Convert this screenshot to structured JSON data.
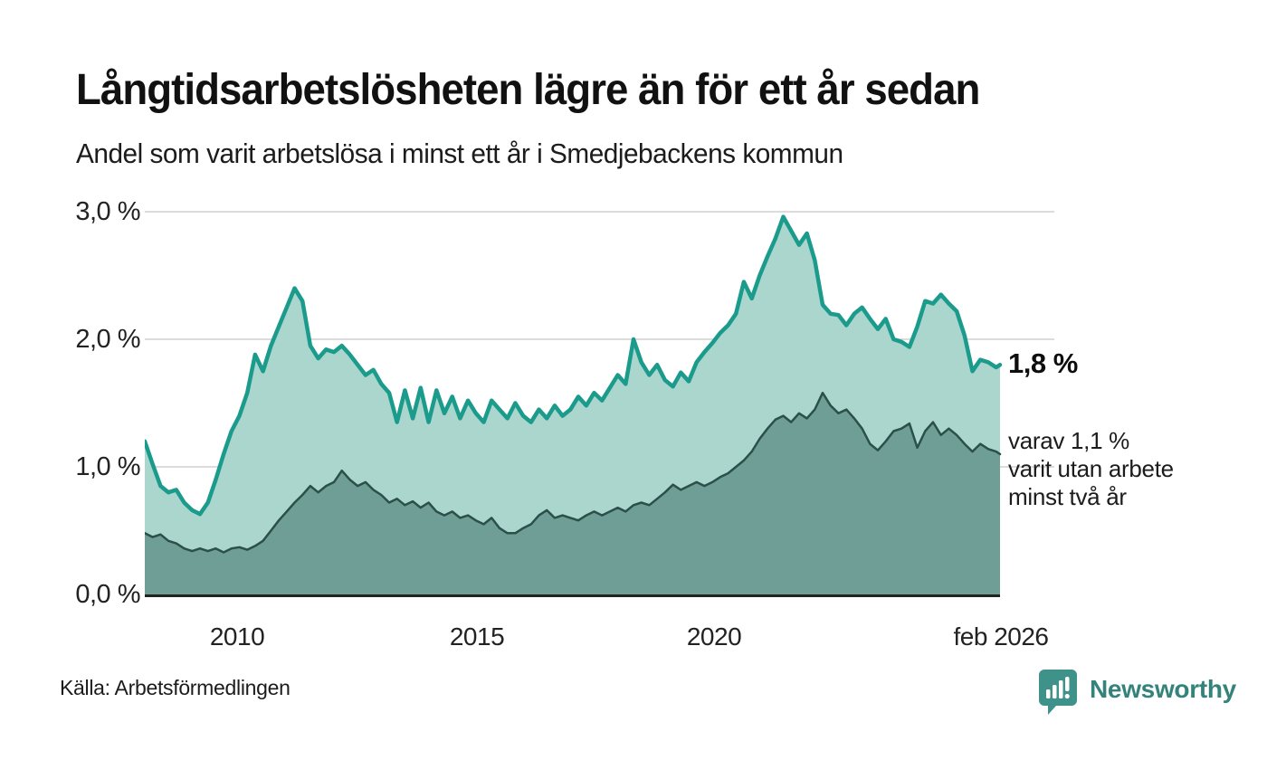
{
  "header": {
    "title": "Långtidsarbetslösheten lägre än för ett år sedan",
    "subtitle": "Andel som varit arbetslösa i minst ett år i Smedjebackens kommun"
  },
  "chart_data": {
    "type": "area",
    "title": "Långtidsarbetslösheten lägre än för ett år sedan",
    "subtitle": "Andel som varit arbetslösa i minst ett år i Smedjebackens kommun",
    "unit": "%",
    "grid": true,
    "x_axis": {
      "start": 2008.0,
      "end": 2026.083,
      "points_per_year": 6,
      "tick_labels": [
        {
          "text": "2010",
          "x": 2010.0
        },
        {
          "text": "2015",
          "x": 2015.0
        },
        {
          "text": "2020",
          "x": 2020.0
        },
        {
          "text": "feb 2026",
          "x": 2026.083
        }
      ]
    },
    "y_axis": {
      "min": 0.0,
      "max": 3.0,
      "tick_labels": [
        "3,0 %",
        "2,0 %",
        "1,0 %",
        "0,0 %"
      ],
      "tick_values": [
        3.0,
        2.0,
        1.0,
        0.0
      ]
    },
    "series": [
      {
        "name": "Arbetslösa minst ett år",
        "line_color": "#1a9b8b",
        "fill_color": "#aad6ce",
        "values": [
          1.2,
          1.02,
          0.85,
          0.8,
          0.82,
          0.72,
          0.66,
          0.63,
          0.72,
          0.9,
          1.1,
          1.28,
          1.4,
          1.58,
          1.88,
          1.75,
          1.95,
          2.1,
          2.25,
          2.4,
          2.3,
          1.95,
          1.85,
          1.92,
          1.9,
          1.95,
          1.88,
          1.8,
          1.72,
          1.76,
          1.65,
          1.58,
          1.35,
          1.6,
          1.38,
          1.62,
          1.35,
          1.6,
          1.42,
          1.55,
          1.38,
          1.52,
          1.42,
          1.35,
          1.52,
          1.45,
          1.38,
          1.5,
          1.4,
          1.35,
          1.45,
          1.38,
          1.48,
          1.4,
          1.45,
          1.55,
          1.48,
          1.58,
          1.52,
          1.62,
          1.72,
          1.65,
          2.0,
          1.82,
          1.72,
          1.8,
          1.68,
          1.63,
          1.74,
          1.67,
          1.82,
          1.9,
          1.97,
          2.05,
          2.11,
          2.2,
          2.45,
          2.32,
          2.5,
          2.65,
          2.79,
          2.96,
          2.85,
          2.74,
          2.83,
          2.62,
          2.27,
          2.2,
          2.19,
          2.11,
          2.2,
          2.25,
          2.16,
          2.08,
          2.16,
          2.0,
          1.98,
          1.94,
          2.1,
          2.3,
          2.28,
          2.35,
          2.28,
          2.22,
          2.03,
          1.75,
          1.84,
          1.82,
          1.78,
          1.8
        ]
      },
      {
        "name": "Arbetslösa minst två år",
        "line_color": "#2b4f49",
        "fill_color": "#6f9e97",
        "values": [
          0.48,
          0.45,
          0.47,
          0.42,
          0.4,
          0.36,
          0.34,
          0.36,
          0.34,
          0.36,
          0.33,
          0.36,
          0.37,
          0.35,
          0.38,
          0.42,
          0.5,
          0.58,
          0.65,
          0.72,
          0.78,
          0.85,
          0.8,
          0.85,
          0.88,
          0.97,
          0.9,
          0.85,
          0.88,
          0.82,
          0.78,
          0.72,
          0.75,
          0.7,
          0.73,
          0.68,
          0.72,
          0.65,
          0.62,
          0.65,
          0.6,
          0.62,
          0.58,
          0.55,
          0.6,
          0.52,
          0.48,
          0.48,
          0.52,
          0.55,
          0.62,
          0.66,
          0.6,
          0.62,
          0.6,
          0.58,
          0.62,
          0.65,
          0.62,
          0.65,
          0.68,
          0.65,
          0.7,
          0.72,
          0.7,
          0.75,
          0.8,
          0.86,
          0.82,
          0.85,
          0.88,
          0.85,
          0.88,
          0.92,
          0.95,
          1.0,
          1.05,
          1.12,
          1.22,
          1.3,
          1.37,
          1.4,
          1.35,
          1.42,
          1.38,
          1.45,
          1.58,
          1.48,
          1.42,
          1.45,
          1.38,
          1.3,
          1.18,
          1.13,
          1.2,
          1.28,
          1.3,
          1.34,
          1.15,
          1.28,
          1.35,
          1.25,
          1.3,
          1.25,
          1.18,
          1.12,
          1.18,
          1.14,
          1.12,
          1.1
        ]
      }
    ],
    "annotations": {
      "latest_total": "1,8 %",
      "latest_two_year_note": "varav 1,1 %\nvarit utan arbete\nminst två år"
    },
    "legend_position": "none",
    "colors": {
      "gridline": "#dcdcdc",
      "baseline": "#222222",
      "brand_teal": "#33837b"
    }
  },
  "footer": {
    "source": "Källa: Arbetsförmedlingen",
    "brand": "Newsworthy"
  }
}
